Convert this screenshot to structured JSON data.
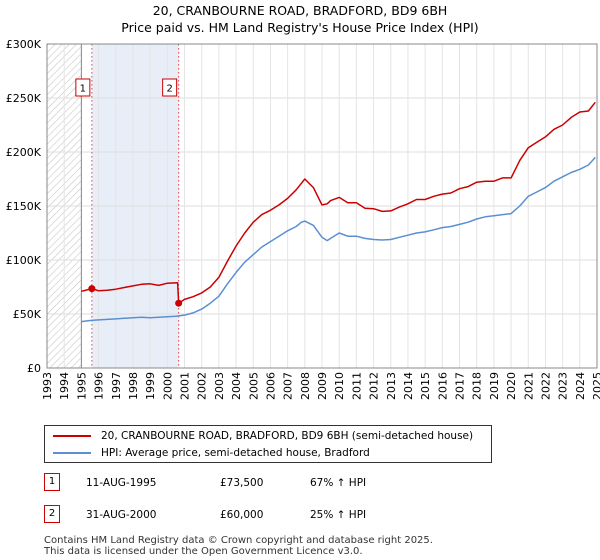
{
  "title_line1": "20, CRANBOURNE ROAD, BRADFORD, BD9 6BH",
  "title_line2": "Price paid vs. HM Land Registry's House Price Index (HPI)",
  "chart_data": {
    "type": "line",
    "title": "Price paid vs. HM Land Registry's House Price Index (HPI)",
    "xlabel": "",
    "ylabel": "",
    "xlim": [
      1993.0,
      2025.0
    ],
    "ylim": [
      0,
      300000
    ],
    "ytick_values": [
      0,
      50000,
      100000,
      150000,
      200000,
      250000,
      300000
    ],
    "ytick_labels": [
      "£0",
      "£50K",
      "£100K",
      "£150K",
      "£200K",
      "£250K",
      "£300K"
    ],
    "xtick_values": [
      1993,
      1994,
      1995,
      1996,
      1997,
      1998,
      1999,
      2000,
      2001,
      2002,
      2003,
      2004,
      2005,
      2006,
      2007,
      2008,
      2009,
      2010,
      2011,
      2012,
      2013,
      2014,
      2015,
      2016,
      2017,
      2018,
      2019,
      2020,
      2021,
      2022,
      2023,
      2024,
      2025
    ],
    "xtick_labels": [
      "1993",
      "1994",
      "1995",
      "1996",
      "1997",
      "1998",
      "1999",
      "2000",
      "2001",
      "2002",
      "2003",
      "2004",
      "2005",
      "2006",
      "2007",
      "2008",
      "2009",
      "2010",
      "2011",
      "2012",
      "2013",
      "2014",
      "2015",
      "2016",
      "2017",
      "2018",
      "2019",
      "2020",
      "2021",
      "2022",
      "2023",
      "2024",
      "2025"
    ],
    "grid": true,
    "hatch_before": 1995.0,
    "shade_ranges": [
      [
        1995.61,
        2000.66
      ]
    ],
    "series": [
      {
        "name": "20, CRANBOURNE ROAD, BRADFORD, BD9 6BH (semi-detached house)",
        "color": "#cc0000",
        "x": [
          1995.0,
          1995.61,
          1996.0,
          1996.5,
          1997.0,
          1997.5,
          1998.0,
          1998.5,
          1999.0,
          1999.5,
          2000.0,
          2000.6,
          2000.66,
          2001.0,
          2001.5,
          2002.0,
          2002.5,
          2003.0,
          2003.5,
          2004.0,
          2004.5,
          2005.0,
          2005.5,
          2006.0,
          2006.5,
          2007.0,
          2007.5,
          2007.8,
          2008.0,
          2008.5,
          2009.0,
          2009.3,
          2009.5,
          2010.0,
          2010.5,
          2011.0,
          2011.5,
          2012.0,
          2012.5,
          2013.0,
          2013.5,
          2014.0,
          2014.5,
          2015.0,
          2015.5,
          2016.0,
          2016.5,
          2017.0,
          2017.5,
          2018.0,
          2018.5,
          2019.0,
          2019.5,
          2020.0,
          2020.5,
          2021.0,
          2021.5,
          2022.0,
          2022.5,
          2023.0,
          2023.5,
          2024.0,
          2024.5,
          2024.9
        ],
        "y": [
          71000,
          73500,
          71500,
          72000,
          73000,
          74500,
          76000,
          77500,
          78000,
          76500,
          78500,
          79000,
          60000,
          63500,
          66000,
          69500,
          75000,
          84000,
          99000,
          113000,
          125000,
          135000,
          142000,
          146000,
          151000,
          157000,
          165000,
          171000,
          175000,
          167000,
          151000,
          152000,
          155000,
          158000,
          153000,
          153000,
          148000,
          147500,
          145000,
          145500,
          149000,
          152000,
          156000,
          156000,
          159000,
          161000,
          162000,
          166000,
          168000,
          172000,
          173000,
          173000,
          176000,
          176000,
          192000,
          204000,
          209000,
          214000,
          221000,
          225000,
          232000,
          237000,
          238000,
          246000
        ]
      },
      {
        "name": "HPI: Average price, semi-detached house, Bradford",
        "color": "#5b8fd1",
        "x": [
          1995.0,
          1995.5,
          1996.0,
          1996.5,
          1997.0,
          1997.5,
          1998.0,
          1998.5,
          1999.0,
          1999.5,
          2000.0,
          2000.5,
          2001.0,
          2001.5,
          2002.0,
          2002.5,
          2003.0,
          2003.5,
          2004.0,
          2004.5,
          2005.0,
          2005.5,
          2006.0,
          2006.5,
          2007.0,
          2007.5,
          2007.8,
          2008.0,
          2008.5,
          2009.0,
          2009.3,
          2009.5,
          2010.0,
          2010.5,
          2011.0,
          2011.5,
          2012.0,
          2012.5,
          2013.0,
          2013.5,
          2014.0,
          2014.5,
          2015.0,
          2015.5,
          2016.0,
          2016.5,
          2017.0,
          2017.5,
          2018.0,
          2018.5,
          2019.0,
          2019.5,
          2020.0,
          2020.5,
          2021.0,
          2021.5,
          2022.0,
          2022.5,
          2023.0,
          2023.5,
          2024.0,
          2024.5,
          2024.9
        ],
        "y": [
          43000,
          44000,
          44500,
          45000,
          45500,
          46000,
          46500,
          47000,
          46500,
          47000,
          47500,
          48000,
          49000,
          51000,
          54500,
          60000,
          66500,
          78000,
          88500,
          98000,
          105000,
          112000,
          117000,
          122000,
          127000,
          131000,
          135000,
          136000,
          132000,
          121000,
          118000,
          120000,
          125000,
          122000,
          122000,
          120000,
          119000,
          118500,
          119000,
          121000,
          123000,
          125000,
          126000,
          128000,
          130000,
          131000,
          133000,
          135000,
          138000,
          140000,
          141000,
          142000,
          143000,
          150000,
          159000,
          163000,
          167000,
          173000,
          177000,
          181000,
          184000,
          188000,
          195000
        ]
      }
    ],
    "markers": [
      {
        "label": "1",
        "x": 1995.61,
        "y": 73500
      },
      {
        "label": "2",
        "x": 2000.66,
        "y": 60000
      }
    ]
  },
  "legend": {
    "items": [
      {
        "label": "20, CRANBOURNE ROAD, BRADFORD, BD9 6BH (semi-detached house)",
        "color": "#cc0000"
      },
      {
        "label": "HPI: Average price, semi-detached house, Bradford",
        "color": "#5b8fd1"
      }
    ]
  },
  "transactions": [
    {
      "num": "1",
      "date": "11-AUG-1995",
      "price": "£73,500",
      "hpi": "67% ↑ HPI"
    },
    {
      "num": "2",
      "date": "31-AUG-2000",
      "price": "£60,000",
      "hpi": "25% ↑ HPI"
    }
  ],
  "footer_line1": "Contains HM Land Registry data © Crown copyright and database right 2025.",
  "footer_line2": "This data is licensed under the Open Government Licence v3.0."
}
